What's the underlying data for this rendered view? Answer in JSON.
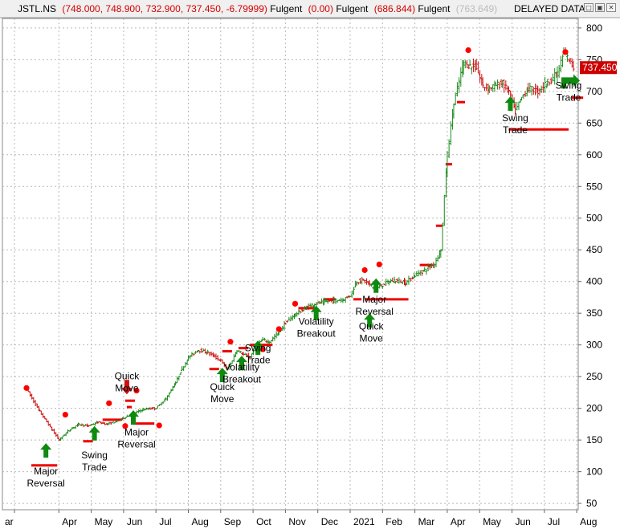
{
  "header": {
    "symbol": "JSTL.NS",
    "ohlc": "(748.000, 748.900, 732.900, 737.450, -6.79999)",
    "ind1_name": "Fulgent",
    "ind1_val": "(0.00)",
    "ind2_name": "Fulgent",
    "ind2_val": "(686.844)",
    "ind3_name": "Fulgent",
    "ind3_val": "(763.649)",
    "status": "DELAYED DATA"
  },
  "window_buttons": [
    {
      "name": "minimize-button",
      "glyph": "□"
    },
    {
      "name": "maximize-button",
      "glyph": "▣"
    },
    {
      "name": "close-button",
      "glyph": "✕"
    }
  ],
  "colors": {
    "up": "#1a8a1a",
    "down": "#cc1111",
    "signal_line": "#ee0000",
    "dot": "#ff0000",
    "arrow": "#0e8a0e",
    "last_price_bg": "#cc0000",
    "grid": "#b8b8b8"
  },
  "chart_data": {
    "type": "line",
    "price_scale": {
      "ticks": [
        50,
        100,
        150,
        200,
        250,
        300,
        350,
        400,
        450,
        500,
        550,
        600,
        650,
        700,
        750,
        800
      ],
      "ylim": [
        40,
        815
      ]
    },
    "months": [
      "ar",
      "Apr",
      "May",
      "Jun",
      "Jul",
      "Aug",
      "Sep",
      "Oct",
      "Nov",
      "Dec",
      "2021",
      "Feb",
      "Mar",
      "Apr",
      "May",
      "Jun",
      "Jul",
      "Aug"
    ],
    "last_price": "737.450",
    "grid": true,
    "legend": "none",
    "price_path": [
      [
        0,
        230
      ],
      [
        0.4,
        195
      ],
      [
        0.8,
        165
      ],
      [
        1.0,
        150
      ],
      [
        1.3,
        165
      ],
      [
        1.6,
        175
      ],
      [
        1.9,
        172
      ],
      [
        2.2,
        178
      ],
      [
        2.5,
        175
      ],
      [
        2.8,
        180
      ],
      [
        3.0,
        185
      ],
      [
        3.3,
        192
      ],
      [
        3.6,
        198
      ],
      [
        3.9,
        200
      ],
      [
        4.0,
        200
      ],
      [
        4.3,
        215
      ],
      [
        4.6,
        240
      ],
      [
        4.8,
        262
      ],
      [
        5.0,
        280
      ],
      [
        5.3,
        292
      ],
      [
        5.6,
        288
      ],
      [
        5.8,
        282
      ],
      [
        6.0,
        275
      ],
      [
        6.2,
        262
      ],
      [
        6.3,
        270
      ],
      [
        6.5,
        292
      ],
      [
        6.7,
        285
      ],
      [
        6.9,
        280
      ],
      [
        7.1,
        300
      ],
      [
        7.3,
        308
      ],
      [
        7.5,
        305
      ],
      [
        7.8,
        320
      ],
      [
        8.0,
        335
      ],
      [
        8.3,
        348
      ],
      [
        8.6,
        358
      ],
      [
        8.9,
        365
      ],
      [
        9.2,
        368
      ],
      [
        9.5,
        370
      ],
      [
        9.8,
        372
      ],
      [
        10.0,
        378
      ],
      [
        10.2,
        400
      ],
      [
        10.4,
        402
      ],
      [
        10.6,
        395
      ],
      [
        10.8,
        388
      ],
      [
        11.0,
        395
      ],
      [
        11.2,
        400
      ],
      [
        11.4,
        402
      ],
      [
        11.7,
        398
      ],
      [
        12.0,
        410
      ],
      [
        12.3,
        418
      ],
      [
        12.6,
        428
      ],
      [
        12.8,
        450
      ],
      [
        13.0,
        600
      ],
      [
        13.2,
        680
      ],
      [
        13.5,
        745
      ],
      [
        13.7,
        740
      ],
      [
        13.9,
        738
      ],
      [
        14.1,
        708
      ],
      [
        14.3,
        705
      ],
      [
        14.5,
        710
      ],
      [
        14.7,
        712
      ],
      [
        14.9,
        700
      ],
      [
        15.1,
        668
      ],
      [
        15.3,
        690
      ],
      [
        15.5,
        705
      ],
      [
        15.8,
        700
      ],
      [
        16.1,
        715
      ],
      [
        16.4,
        728
      ],
      [
        16.6,
        760
      ],
      [
        16.8,
        748
      ],
      [
        16.9,
        737.45
      ]
    ],
    "signal_lines": [
      {
        "x1": 0.15,
        "x2": 0.95,
        "y": 110
      },
      {
        "x1": 1.75,
        "x2": 2.05,
        "y": 148
      },
      {
        "x1": 2.35,
        "x2": 2.95,
        "y": 182
      },
      {
        "x1": 3.05,
        "x2": 3.35,
        "y": 212
      },
      {
        "x1": 3.1,
        "x2": 3.25,
        "y": 202
      },
      {
        "x1": 3.3,
        "x2": 3.95,
        "y": 176
      },
      {
        "x1": 5.65,
        "x2": 5.95,
        "y": 262
      },
      {
        "x1": 6.05,
        "x2": 6.35,
        "y": 290
      },
      {
        "x1": 6.55,
        "x2": 6.85,
        "y": 295
      },
      {
        "x1": 6.9,
        "x2": 7.2,
        "y": 300
      },
      {
        "x1": 7.1,
        "x2": 7.6,
        "y": 300
      },
      {
        "x1": 8.4,
        "x2": 8.9,
        "y": 358
      },
      {
        "x1": 9.2,
        "x2": 9.55,
        "y": 372
      },
      {
        "x1": 10.1,
        "x2": 10.35,
        "y": 372
      },
      {
        "x1": 10.45,
        "x2": 11.8,
        "y": 372
      },
      {
        "x1": 12.15,
        "x2": 12.55,
        "y": 426
      },
      {
        "x1": 12.65,
        "x2": 12.85,
        "y": 488
      },
      {
        "x1": 12.95,
        "x2": 13.15,
        "y": 585
      },
      {
        "x1": 13.3,
        "x2": 13.55,
        "y": 683
      },
      {
        "x1": 14.9,
        "x2": 16.75,
        "y": 640
      },
      {
        "x1": 16.85,
        "x2": 17.2,
        "y": 690
      }
    ],
    "dots": [
      [
        0.0,
        232
      ],
      [
        1.2,
        190
      ],
      [
        2.55,
        208
      ],
      [
        3.05,
        172
      ],
      [
        3.4,
        228
      ],
      [
        4.1,
        173
      ],
      [
        6.3,
        305
      ],
      [
        7.3,
        293
      ],
      [
        7.8,
        325
      ],
      [
        8.3,
        365
      ],
      [
        10.45,
        418
      ],
      [
        10.9,
        427
      ],
      [
        13.65,
        765
      ],
      [
        16.65,
        762
      ]
    ],
    "bias_markers": [
      {
        "kind": "up",
        "x": 0.6,
        "y": 145
      },
      {
        "kind": "up",
        "x": 2.1,
        "y": 172
      },
      {
        "kind": "down",
        "x": 3.1,
        "y": 222
      },
      {
        "kind": "up",
        "x": 3.3,
        "y": 197
      },
      {
        "kind": "up",
        "x": 6.05,
        "y": 264
      },
      {
        "kind": "up",
        "x": 6.65,
        "y": 283
      },
      {
        "kind": "up",
        "x": 7.15,
        "y": 307
      },
      {
        "kind": "up",
        "x": 8.95,
        "y": 362
      },
      {
        "kind": "up",
        "x": 10.6,
        "y": 350
      },
      {
        "kind": "up",
        "x": 10.8,
        "y": 405
      },
      {
        "kind": "up",
        "x": 14.95,
        "y": 692
      },
      {
        "kind": "right",
        "x": 16.75,
        "y": 717
      }
    ],
    "annotations": [
      {
        "lines": [
          "Major",
          "Reversal"
        ],
        "x": 0.6,
        "y": 96
      },
      {
        "lines": [
          "Swing",
          "Trade"
        ],
        "x": 2.1,
        "y": 121
      },
      {
        "lines": [
          "Quick",
          "Move"
        ],
        "x": 3.1,
        "y": 246
      },
      {
        "lines": [
          "Major",
          "Reversal"
        ],
        "x": 3.4,
        "y": 157
      },
      {
        "lines": [
          "Quick",
          "Move"
        ],
        "x": 6.05,
        "y": 229
      },
      {
        "lines": [
          "Volatility",
          "Breakout"
        ],
        "x": 6.65,
        "y": 260
      },
      {
        "lines": [
          "Swing",
          "Trade"
        ],
        "x": 7.15,
        "y": 290
      },
      {
        "lines": [
          "Volatility",
          "Breakout"
        ],
        "x": 8.95,
        "y": 332
      },
      {
        "lines": [
          "Major",
          "Reversal"
        ],
        "x": 10.75,
        "y": 367
      },
      {
        "lines": [
          "Quick",
          "Move"
        ],
        "x": 10.65,
        "y": 324
      },
      {
        "lines": [
          "Swing",
          "Trade"
        ],
        "x": 15.1,
        "y": 653
      },
      {
        "lines": [
          "Swing",
          "Trade"
        ],
        "x": 16.75,
        "y": 704
      }
    ]
  }
}
